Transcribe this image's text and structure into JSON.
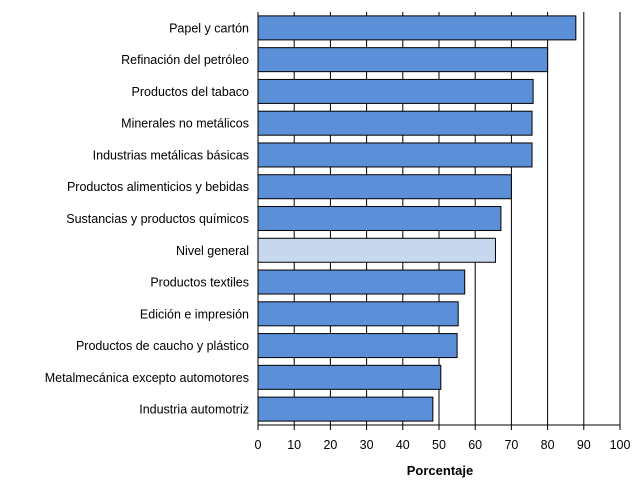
{
  "chart_data": {
    "type": "bar",
    "orientation": "horizontal",
    "categories": [
      "Papel y cartón",
      "Refinación del petróleo",
      "Productos del tabaco",
      "Minerales no metálicos",
      "Industrias metálicas básicas",
      "Productos alimenticios y bebidas",
      "Sustancias y productos químicos",
      "Nivel general",
      "Productos textiles",
      "Edición e impresión",
      "Productos de caucho y plástico",
      "Metalmecánica excepto automotores",
      "Industria automotriz"
    ],
    "values": [
      87.8,
      80.0,
      76.0,
      75.7,
      75.7,
      70.0,
      67.1,
      65.6,
      57.1,
      55.3,
      55.0,
      50.5,
      48.3
    ],
    "highlight_category": "Nivel general",
    "title": "",
    "xlabel": "Porcentaje",
    "ylabel": "",
    "xlim": [
      0,
      100
    ],
    "xticks": [
      0,
      10,
      20,
      30,
      40,
      50,
      60,
      70,
      80,
      90,
      100
    ],
    "grid": "vertical major gridlines",
    "legend": "none",
    "colors": {
      "bar": "#5b8fd8",
      "highlight_bar": "#c6d7ee",
      "bar_stroke": "#000000",
      "grid": "#000000"
    }
  }
}
